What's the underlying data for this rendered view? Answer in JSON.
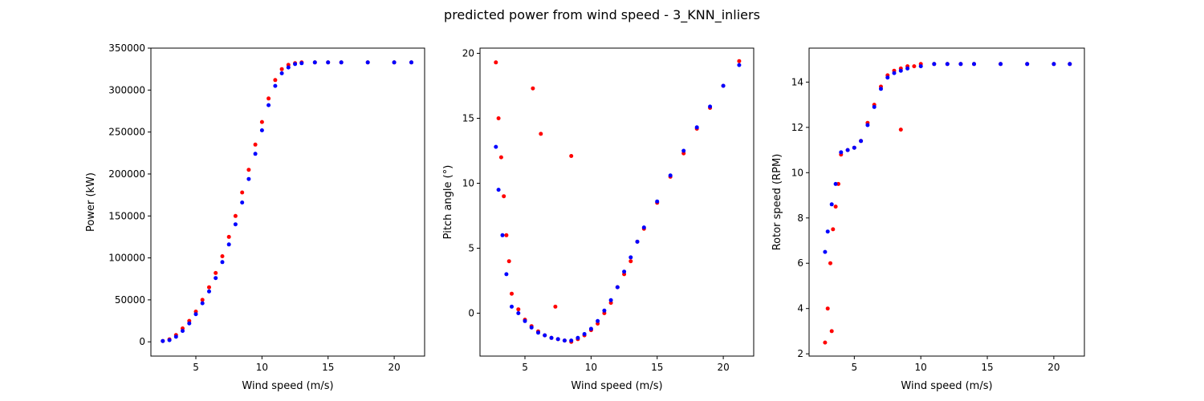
{
  "figure": {
    "title": "predicted power from wind speed - 3_KNN_inliers"
  },
  "chart_data": [
    {
      "type": "scatter",
      "xlabel": "Wind speed (m/s)",
      "ylabel": "Power (kW)",
      "xlim": [
        1.6,
        22.3
      ],
      "ylim": [
        -17000,
        350000
      ],
      "xticks": [
        5,
        10,
        15,
        20
      ],
      "yticks": [
        0,
        50000,
        100000,
        150000,
        200000,
        250000,
        300000,
        350000
      ],
      "grid": false,
      "series": [
        {
          "color": "#ff0000",
          "x": [
            2.5,
            3.0,
            3.5,
            4.0,
            4.5,
            5.0,
            5.5,
            6.0,
            6.5,
            7.0,
            7.5,
            8.0,
            8.5,
            9.0,
            9.5,
            10.0,
            10.5,
            11.0,
            11.5,
            12.0,
            12.5,
            13.0,
            14.0,
            15.0,
            16.0,
            18.0,
            20.0,
            21.3
          ],
          "y": [
            1000,
            3000,
            8000,
            16000,
            25000,
            36000,
            50000,
            65000,
            82000,
            102000,
            125000,
            150000,
            178000,
            205000,
            235000,
            262000,
            290000,
            312000,
            325000,
            330000,
            332000,
            333000,
            333000,
            333000,
            333000,
            333000,
            333000,
            333000
          ]
        },
        {
          "color": "#0000ff",
          "x": [
            2.5,
            3.0,
            3.5,
            4.0,
            4.5,
            5.0,
            5.5,
            6.0,
            6.5,
            7.0,
            7.5,
            8.0,
            8.5,
            9.0,
            9.5,
            10.0,
            10.5,
            11.0,
            11.5,
            12.0,
            12.5,
            13.0,
            14.0,
            15.0,
            16.0,
            18.0,
            20.0,
            21.3
          ],
          "y": [
            1000,
            2000,
            6000,
            13000,
            22000,
            33000,
            46000,
            60000,
            76000,
            95000,
            116000,
            140000,
            166000,
            194000,
            224000,
            252000,
            282000,
            305000,
            320000,
            327000,
            331000,
            332000,
            333000,
            333000,
            333000,
            333000,
            333000,
            333000
          ]
        }
      ]
    },
    {
      "type": "scatter",
      "xlabel": "Wind speed (m/s)",
      "ylabel": "Pitch angle (°)",
      "xlim": [
        1.6,
        22.3
      ],
      "ylim": [
        -3.3,
        20.4
      ],
      "xticks": [
        5,
        10,
        15,
        20
      ],
      "yticks": [
        0,
        5,
        10,
        15,
        20
      ],
      "grid": false,
      "series": [
        {
          "color": "#ff0000",
          "x": [
            2.8,
            3.0,
            3.2,
            3.4,
            3.6,
            3.8,
            4.0,
            4.5,
            5.0,
            5.5,
            6.0,
            6.5,
            7.0,
            7.5,
            8.0,
            8.5,
            9.0,
            9.5,
            10.0,
            10.5,
            11.0,
            11.5,
            12.0,
            12.5,
            13.0,
            13.5,
            14.0,
            15.0,
            16.0,
            17.0,
            18.0,
            19.0,
            20.0,
            21.2,
            5.6,
            6.2,
            8.5,
            7.3
          ],
          "y": [
            19.3,
            15.0,
            12.0,
            9.0,
            6.0,
            4.0,
            1.5,
            0.3,
            -0.5,
            -1.0,
            -1.4,
            -1.7,
            -1.9,
            -2.0,
            -2.1,
            -2.2,
            -2.0,
            -1.7,
            -1.3,
            -0.8,
            0.0,
            0.8,
            2.0,
            3.0,
            4.0,
            5.5,
            6.5,
            8.5,
            10.5,
            12.3,
            14.2,
            15.8,
            17.5,
            19.4,
            17.3,
            13.8,
            12.1,
            0.5
          ]
        },
        {
          "color": "#0000ff",
          "x": [
            2.8,
            3.0,
            3.3,
            3.6,
            4.0,
            4.5,
            5.0,
            5.5,
            6.0,
            6.5,
            7.0,
            7.5,
            8.0,
            8.5,
            9.0,
            9.5,
            10.0,
            10.5,
            11.0,
            11.5,
            12.0,
            12.5,
            13.0,
            13.5,
            14.0,
            15.0,
            16.0,
            17.0,
            18.0,
            19.0,
            20.0,
            21.2
          ],
          "y": [
            12.8,
            9.5,
            6.0,
            3.0,
            0.5,
            0.0,
            -0.6,
            -1.1,
            -1.5,
            -1.7,
            -1.9,
            -2.0,
            -2.1,
            -2.1,
            -1.9,
            -1.6,
            -1.2,
            -0.6,
            0.2,
            1.0,
            2.0,
            3.2,
            4.3,
            5.5,
            6.6,
            8.6,
            10.6,
            12.5,
            14.3,
            15.9,
            17.5,
            19.1
          ]
        }
      ]
    },
    {
      "type": "scatter",
      "xlabel": "Wind speed (m/s)",
      "ylabel": "Rotor speed (RPM)",
      "xlim": [
        1.6,
        22.3
      ],
      "ylim": [
        1.9,
        15.5
      ],
      "xticks": [
        5,
        10,
        15,
        20
      ],
      "yticks": [
        2,
        4,
        6,
        8,
        10,
        12,
        14
      ],
      "grid": false,
      "series": [
        {
          "color": "#ff0000",
          "x": [
            2.8,
            3.0,
            3.2,
            3.4,
            3.6,
            3.8,
            4.0,
            4.5,
            5.0,
            5.5,
            6.0,
            6.5,
            7.0,
            7.5,
            8.0,
            8.5,
            9.0,
            9.5,
            10.0,
            11.0,
            12.0,
            13.0,
            14.0,
            16.0,
            18.0,
            20.0,
            21.2,
            8.5,
            3.3
          ],
          "y": [
            2.5,
            4.0,
            6.0,
            7.5,
            8.5,
            9.5,
            10.8,
            11.0,
            11.1,
            11.4,
            12.2,
            13.0,
            13.8,
            14.3,
            14.5,
            14.6,
            14.7,
            14.7,
            14.8,
            14.8,
            14.8,
            14.8,
            14.8,
            14.8,
            14.8,
            14.8,
            14.8,
            11.9,
            3.0
          ]
        },
        {
          "color": "#0000ff",
          "x": [
            2.8,
            3.0,
            3.3,
            3.6,
            4.0,
            4.5,
            5.0,
            5.5,
            6.0,
            6.5,
            7.0,
            7.5,
            8.0,
            8.5,
            9.0,
            10.0,
            11.0,
            12.0,
            13.0,
            14.0,
            16.0,
            18.0,
            20.0,
            21.2
          ],
          "y": [
            6.5,
            7.4,
            8.6,
            9.5,
            10.9,
            11.0,
            11.1,
            11.4,
            12.1,
            12.9,
            13.7,
            14.2,
            14.4,
            14.5,
            14.6,
            14.7,
            14.8,
            14.8,
            14.8,
            14.8,
            14.8,
            14.8,
            14.8,
            14.8
          ]
        }
      ]
    }
  ]
}
